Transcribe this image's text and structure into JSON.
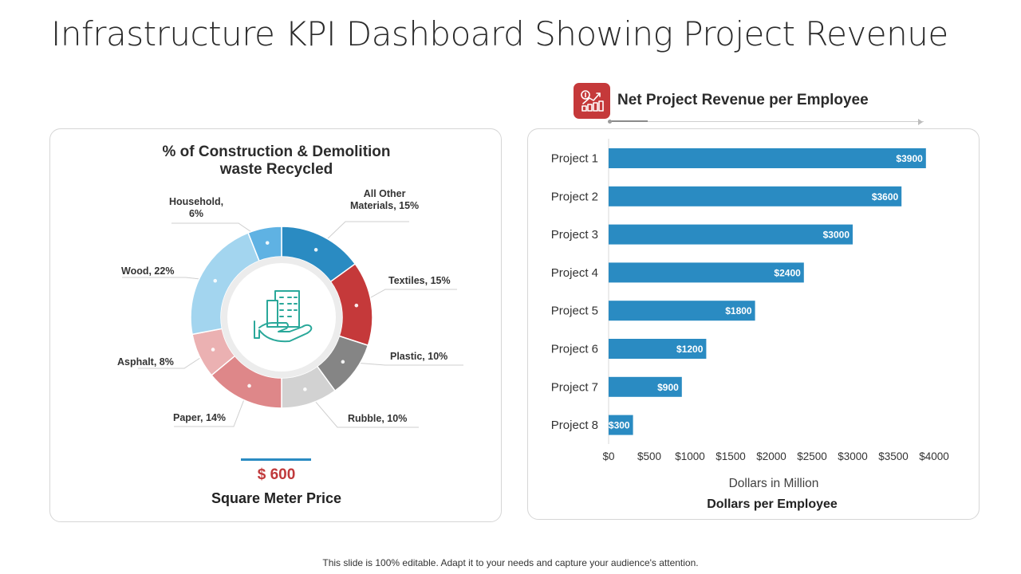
{
  "title": "Infrastructure KPI Dashboard Showing Project Revenue",
  "colors": {
    "blue": "#2a8bc2",
    "red": "#c5393a",
    "gray_dark": "#858585",
    "gray_light": "#d2d2d2",
    "pink_dark": "#de8789",
    "pink_light": "#ebb1b2",
    "sky": "#a3d5ef",
    "sky_mid": "#5fb2e3"
  },
  "donut": {
    "title_line1": "% of Construction & Demolition",
    "title_line2": "waste Recycled",
    "center_icon": "building-in-hand-icon",
    "price": {
      "value": "$ 600",
      "label": "Square Meter Price"
    }
  },
  "revenue": {
    "icon": "revenue-growth-icon",
    "title": "Net Project Revenue per Employee"
  },
  "chart_data": [
    {
      "type": "pie",
      "title": "% of Construction & Demolition waste Recycled",
      "donut": true,
      "slices": [
        {
          "label": "All Other Materials, 15%",
          "name": "All Other Materials",
          "value": 15,
          "color": "#2a8bc2"
        },
        {
          "label": "Textiles, 15%",
          "name": "Textiles",
          "value": 15,
          "color": "#c5393a"
        },
        {
          "label": "Plastic, 10%",
          "name": "Plastic",
          "value": 10,
          "color": "#858585"
        },
        {
          "label": "Rubble, 10%",
          "name": "Rubble",
          "value": 10,
          "color": "#d2d2d2"
        },
        {
          "label": "Paper, 14%",
          "name": "Paper",
          "value": 14,
          "color": "#de8789"
        },
        {
          "label": "Asphalt, 8%",
          "name": "Asphalt",
          "value": 8,
          "color": "#ebb1b2"
        },
        {
          "label": "Wood, 22%",
          "name": "Wood",
          "value": 22,
          "color": "#a3d5ef"
        },
        {
          "label": "Household, 6%",
          "name": "Household",
          "value": 6,
          "color": "#5fb2e3"
        }
      ]
    },
    {
      "type": "bar",
      "orientation": "horizontal",
      "title": "Dollars per Employee",
      "xlabel": "Dollars in Million",
      "categories": [
        "Project 1",
        "Project 2",
        "Project 3",
        "Project 4",
        "Project 5",
        "Project 6",
        "Project 7",
        "Project 8"
      ],
      "values": [
        3900,
        3600,
        3000,
        2400,
        1800,
        1200,
        900,
        300
      ],
      "value_labels": [
        "$3900",
        "$3600",
        "$3000",
        "$2400",
        "$1800",
        "$1200",
        "$900",
        "$300"
      ],
      "xlim": [
        0,
        4000
      ],
      "xticks": [
        0,
        500,
        1000,
        1500,
        2000,
        2500,
        3000,
        3500,
        4000
      ],
      "xtick_labels": [
        "$0",
        "$500",
        "$1000",
        "$1500",
        "$2000",
        "$2500",
        "$3000",
        "$3500",
        "$4000"
      ],
      "bar_color": "#2a8bc2",
      "grid": false
    }
  ],
  "footer": "This slide is 100% editable. Adapt it to your needs and capture your audience's attention."
}
